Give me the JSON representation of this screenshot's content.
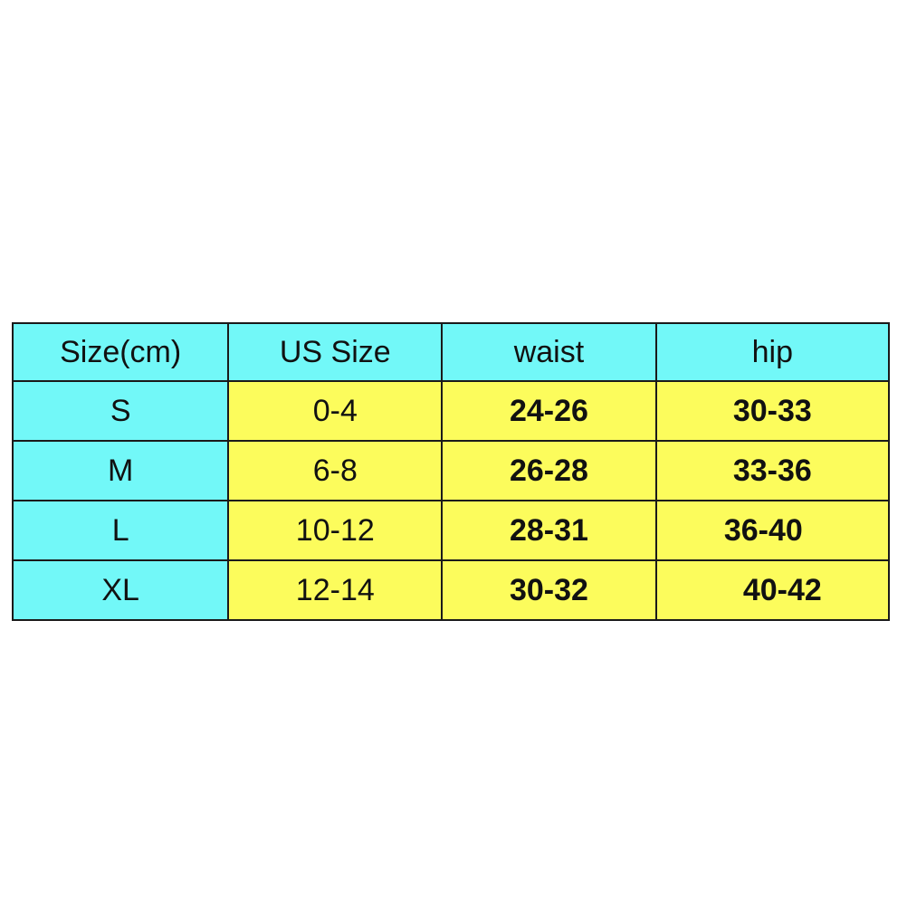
{
  "colors": {
    "header": "#72f8f8",
    "size_column": "#72f8f8",
    "body": "#fcfc5c",
    "border": "#1a1a1a"
  },
  "headers": [
    "Size(cm)",
    "US Size",
    "waist",
    "hip"
  ],
  "rows": [
    {
      "size": "S",
      "us": "0-4",
      "waist": "24-26",
      "hip": "30-33"
    },
    {
      "size": "M",
      "us": "6-8",
      "waist": "26-28",
      "hip": "33-36"
    },
    {
      "size": "L",
      "us": "10-12",
      "waist": "28-31",
      "hip": "36-40"
    },
    {
      "size": "XL",
      "us": "12-14",
      "waist": "30-32",
      "hip": "40-42"
    }
  ]
}
